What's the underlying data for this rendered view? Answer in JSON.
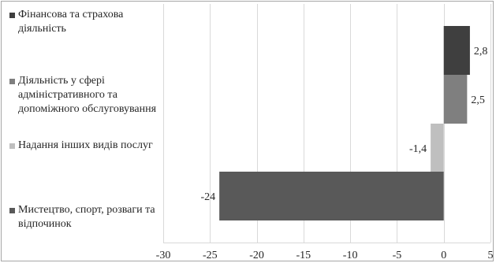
{
  "chart_data": {
    "type": "bar",
    "orientation": "horizontal",
    "categories": [
      "Фінансова та страхова діяльність",
      "Діяльність у сфері адміністративного та допоміжного обслуговування",
      "Надання інших видів послуг",
      "Мистецтво, спорт, розваги та відпочинок"
    ],
    "values": [
      2.8,
      2.5,
      -1.4,
      -24
    ],
    "value_labels": [
      "2,8",
      "2,5",
      "-1,4",
      "-24"
    ],
    "colors": [
      "#3f3f3f",
      "#7f7f7f",
      "#bfbfbf",
      "#595959"
    ],
    "xlim": [
      -30,
      5
    ],
    "ticks": [
      -30,
      -25,
      -20,
      -15,
      -10,
      -5,
      0,
      5
    ],
    "grid": true,
    "legend_position": "left",
    "title": "",
    "xlabel": "",
    "ylabel": ""
  }
}
